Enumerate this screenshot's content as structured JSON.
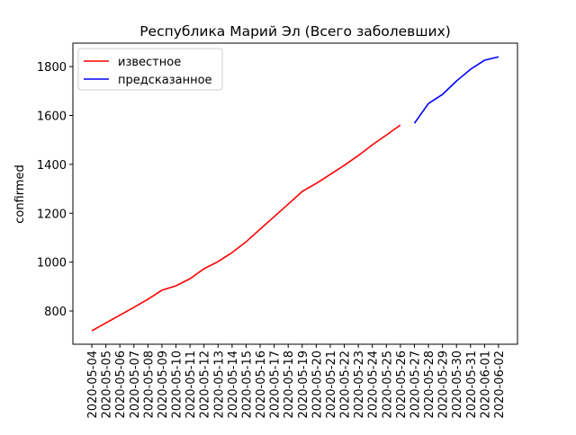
{
  "chart_data": {
    "type": "line",
    "title": "Республика Марий Эл (Всего заболевших)",
    "ylabel": "confirmed",
    "categories": [
      "2020-05-04",
      "2020-05-05",
      "2020-05-06",
      "2020-05-07",
      "2020-05-08",
      "2020-05-09",
      "2020-05-10",
      "2020-05-11",
      "2020-05-12",
      "2020-05-13",
      "2020-05-14",
      "2020-05-15",
      "2020-05-16",
      "2020-05-17",
      "2020-05-18",
      "2020-05-19",
      "2020-05-20",
      "2020-05-21",
      "2020-05-22",
      "2020-05-23",
      "2020-05-24",
      "2020-05-25",
      "2020-05-26",
      "2020-05-27",
      "2020-05-28",
      "2020-05-29",
      "2020-05-30",
      "2020-05-31",
      "2020-06-01",
      "2020-06-02"
    ],
    "series": [
      {
        "name": "известное",
        "color": "#ff0000",
        "values": [
          719,
          751,
          783,
          815,
          848,
          885,
          903,
          932,
          973,
          1002,
          1039,
          1083,
          1135,
          1186,
          1237,
          1289,
          1322,
          1359,
          1396,
          1436,
          1480,
          1520,
          1561,
          null,
          null,
          null,
          null,
          null,
          null,
          null
        ]
      },
      {
        "name": "предсказанное",
        "color": "#0000ff",
        "values": [
          null,
          null,
          null,
          null,
          null,
          null,
          null,
          null,
          null,
          null,
          null,
          null,
          null,
          null,
          null,
          null,
          null,
          null,
          null,
          null,
          null,
          null,
          null,
          1568,
          1649,
          1686,
          1741,
          1789,
          1826,
          1840
        ]
      }
    ],
    "ylim": [
      664,
      1896
    ],
    "yticks": [
      800,
      1000,
      1200,
      1400,
      1600,
      1800
    ],
    "grid": false,
    "legend": "upper left"
  }
}
